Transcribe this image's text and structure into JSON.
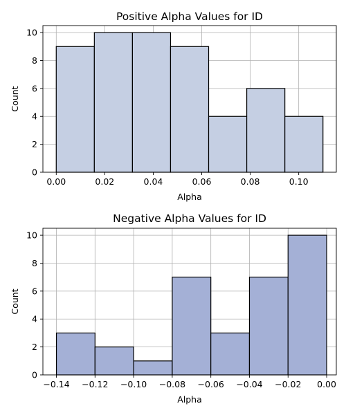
{
  "chart_data": [
    {
      "type": "bar",
      "subtype": "histogram",
      "title": "Positive Alpha Values for ID",
      "xlabel": "Alpha",
      "ylabel": "Count",
      "bin_edges": [
        0.0,
        0.015714,
        0.031429,
        0.047143,
        0.062857,
        0.078571,
        0.094286,
        0.11
      ],
      "values": [
        9,
        10,
        10,
        9,
        4,
        6,
        4
      ],
      "xlim": [
        -0.0055,
        0.1155
      ],
      "ylim": [
        0,
        10.5
      ],
      "xticks": [
        0.0,
        0.02,
        0.04,
        0.06,
        0.08,
        0.1
      ],
      "xtick_labels": [
        "0.00",
        "0.02",
        "0.04",
        "0.06",
        "0.08",
        "0.10"
      ],
      "yticks": [
        0,
        2,
        4,
        6,
        8,
        10
      ],
      "ytick_labels": [
        "0",
        "2",
        "4",
        "6",
        "8",
        "10"
      ],
      "grid": true,
      "bar_color": "#c5cfe3",
      "edge_color": "#000000"
    },
    {
      "type": "bar",
      "subtype": "histogram",
      "title": "Negative Alpha Values for ID",
      "xlabel": "Alpha",
      "ylabel": "Count",
      "bin_edges": [
        -0.14,
        -0.12,
        -0.1,
        -0.08,
        -0.06,
        -0.04,
        -0.02,
        0.0
      ],
      "values": [
        3,
        2,
        1,
        7,
        3,
        7,
        10
      ],
      "xlim": [
        -0.147,
        0.005
      ],
      "ylim": [
        0,
        10.5
      ],
      "xticks": [
        -0.14,
        -0.12,
        -0.1,
        -0.08,
        -0.06,
        -0.04,
        -0.02,
        0.0
      ],
      "xtick_labels": [
        "−0.14",
        "−0.12",
        "−0.10",
        "−0.08",
        "−0.06",
        "−0.04",
        "−0.02",
        "0.00"
      ],
      "yticks": [
        0,
        2,
        4,
        6,
        8,
        10
      ],
      "ytick_labels": [
        "0",
        "2",
        "4",
        "6",
        "8",
        "10"
      ],
      "grid": true,
      "bar_color": "#a4b0d6",
      "edge_color": "#000000"
    }
  ]
}
